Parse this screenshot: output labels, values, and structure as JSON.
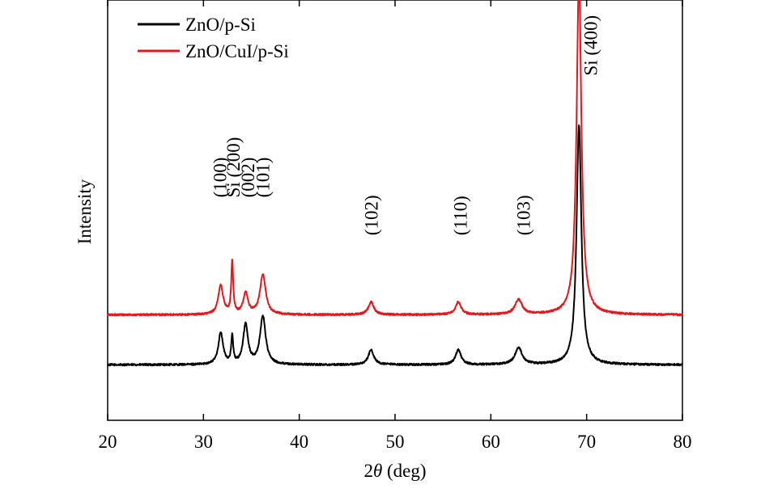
{
  "chart_data": {
    "type": "line",
    "title": "",
    "xlabel_italic": "θ",
    "xlabel_prefix": "2",
    "xlabel_suffix": " (deg)",
    "ylabel": "Intensity",
    "xlim": [
      20,
      80
    ],
    "xticks": [
      "20",
      "30",
      "40",
      "50",
      "60",
      "70",
      "80"
    ],
    "ylim": [
      0,
      100
    ],
    "legend_position": "top-left",
    "grid": false,
    "series": [
      {
        "name": "ZnO/p-Si",
        "color": "#000000",
        "baseline": 13.2,
        "peaks": [
          {
            "x": 31.8,
            "y": 7.5,
            "w": 0.3
          },
          {
            "x": 33.0,
            "y": 6.5,
            "w": 0.12
          },
          {
            "x": 34.4,
            "y": 9.5,
            "w": 0.3
          },
          {
            "x": 36.2,
            "y": 11.5,
            "w": 0.35
          },
          {
            "x": 47.5,
            "y": 3.5,
            "w": 0.35
          },
          {
            "x": 56.6,
            "y": 3.5,
            "w": 0.35
          },
          {
            "x": 62.9,
            "y": 4.0,
            "w": 0.45
          },
          {
            "x": 69.2,
            "y": 57.0,
            "w": 0.3
          }
        ]
      },
      {
        "name": "ZnO/CuI/p-Si",
        "color": "#e8161b",
        "baseline": 25.1,
        "peaks": [
          {
            "x": 31.8,
            "y": 7.0,
            "w": 0.3
          },
          {
            "x": 33.0,
            "y": 12.5,
            "w": 0.12
          },
          {
            "x": 34.4,
            "y": 5.0,
            "w": 0.3
          },
          {
            "x": 36.2,
            "y": 9.5,
            "w": 0.35
          },
          {
            "x": 47.5,
            "y": 3.0,
            "w": 0.35
          },
          {
            "x": 56.6,
            "y": 3.0,
            "w": 0.35
          },
          {
            "x": 62.9,
            "y": 3.5,
            "w": 0.45
          },
          {
            "x": 69.2,
            "y": 80.0,
            "w": 0.3
          }
        ]
      }
    ],
    "annotations": [
      {
        "text": "(100)",
        "x": 31.7,
        "y": 53
      },
      {
        "text": "Si (200)",
        "x": 33.1,
        "y": 53
      },
      {
        "text": "(002)",
        "x": 34.6,
        "y": 53
      },
      {
        "text": "(101)",
        "x": 36.2,
        "y": 53
      },
      {
        "text": "(102)",
        "x": 47.5,
        "y": 44
      },
      {
        "text": "(110)",
        "x": 56.8,
        "y": 44
      },
      {
        "text": "(103)",
        "x": 63.4,
        "y": 44
      },
      {
        "text": "Si (400)",
        "x": 70.4,
        "y": 82
      }
    ]
  }
}
